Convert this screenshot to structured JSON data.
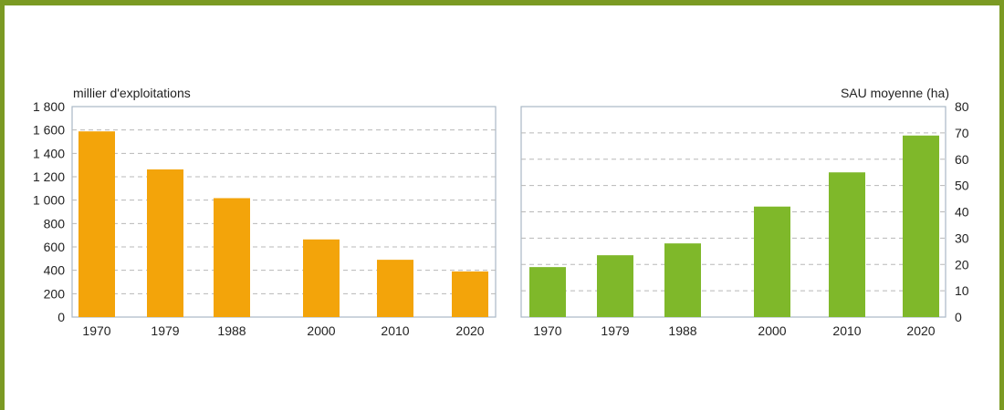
{
  "chart_data": [
    {
      "type": "bar",
      "ylabel": "millier d'exploitations",
      "categories": [
        "1970",
        "1979",
        "1988",
        "2000",
        "2010",
        "2020"
      ],
      "values": [
        1588,
        1263,
        1017,
        664,
        490,
        390
      ],
      "ylim": [
        0,
        1800
      ],
      "yticks": [
        "0",
        "200",
        "400",
        "600",
        "800",
        "1 000",
        "1 200",
        "1 400",
        "1 600",
        "1 800"
      ],
      "color": "#f3a40a",
      "grid": true,
      "axis_side": "left"
    },
    {
      "type": "bar",
      "ylabel": "SAU moyenne (ha)",
      "categories": [
        "1970",
        "1979",
        "1988",
        "2000",
        "2010",
        "2020"
      ],
      "values": [
        19,
        23.5,
        28,
        42,
        55,
        69
      ],
      "ylim": [
        0,
        80
      ],
      "yticks": [
        "0",
        "10",
        "20",
        "30",
        "40",
        "50",
        "60",
        "70",
        "80"
      ],
      "color": "#7fb82a",
      "grid": true,
      "axis_side": "right"
    }
  ]
}
